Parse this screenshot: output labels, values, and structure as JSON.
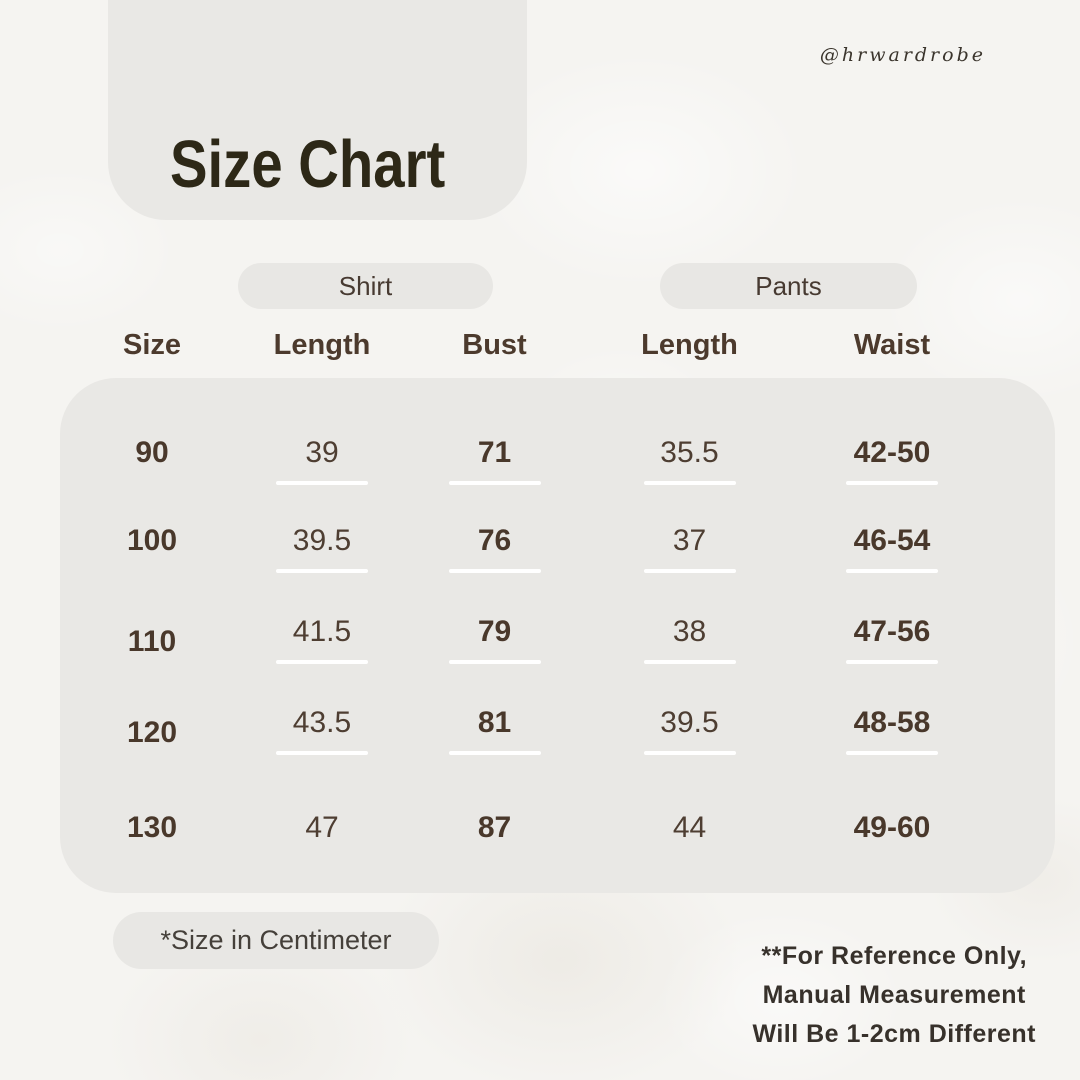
{
  "header": {
    "title": "Size Chart",
    "handle": "@hrwardrobe"
  },
  "footer": {
    "note": "*Size in Centimeter",
    "disclaimer_lines": [
      "**For Reference Only,",
      "Manual Measurement",
      "Will Be 1-2cm Different"
    ]
  },
  "chart_data": {
    "type": "table",
    "title": "Size Chart",
    "unit_note": "*Size in Centimeter",
    "column_groups": [
      {
        "label": "Shirt",
        "columns": [
          "Length",
          "Bust"
        ]
      },
      {
        "label": "Pants",
        "columns": [
          "Length",
          "Waist"
        ]
      }
    ],
    "columns": [
      "Size",
      "Length",
      "Bust",
      "Length",
      "Waist"
    ],
    "rows": [
      [
        "90",
        "39",
        "71",
        "35.5",
        "42-50"
      ],
      [
        "100",
        "39.5",
        "76",
        "37",
        "46-54"
      ],
      [
        "110",
        "41.5",
        "79",
        "38",
        "47-56"
      ],
      [
        "120",
        "43.5",
        "81",
        "39.5",
        "48-58"
      ],
      [
        "130",
        "47",
        "87",
        "44",
        "49-60"
      ]
    ]
  },
  "colors": {
    "bg": "#f5f4f1",
    "panel": "#e9e8e5",
    "pill": "#e8e7e4",
    "title": "#2d2817",
    "header-text": "#4c3a2d",
    "value-bold": "#49382b",
    "value-reg": "#4e3e32",
    "footer-text": "#37312b",
    "underline": "#ffffff"
  }
}
